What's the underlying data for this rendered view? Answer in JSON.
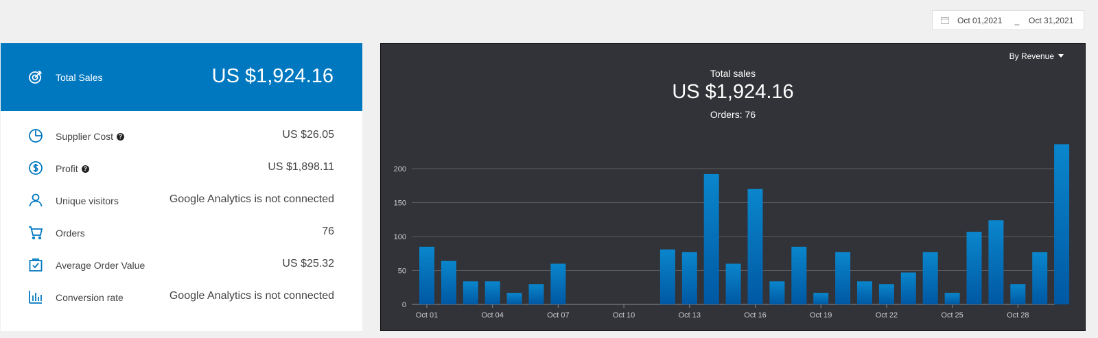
{
  "date_range": {
    "start": "Oct 01,2021",
    "separator": "_",
    "end": "Oct 31,2021",
    "icon": "calendar-icon"
  },
  "summary": {
    "total_label": "Total Sales",
    "total_value": "US $1,924.16",
    "total_icon": "target-icon",
    "accent_color": "#0078c0",
    "metrics": [
      {
        "label": "Supplier Cost",
        "value": "US $26.05",
        "icon": "pie-chart-icon",
        "help": true
      },
      {
        "label": "Profit",
        "value": "US $1,898.11",
        "icon": "dollar-circle-icon",
        "help": true
      },
      {
        "label": "Unique visitors",
        "value": "Google Analytics is not connected",
        "icon": "user-icon",
        "help": false
      },
      {
        "label": "Orders",
        "value": "76",
        "icon": "cart-icon",
        "help": false
      },
      {
        "label": "Average Order Value",
        "value": "US $25.32",
        "icon": "bag-check-icon",
        "help": false
      },
      {
        "label": "Conversion rate",
        "value": "Google Analytics is not connected",
        "icon": "bar-chart-icon",
        "help": false
      }
    ]
  },
  "chart_panel": {
    "dropdown_label": "By Revenue",
    "title": "Total sales",
    "total": "US $1,924.16",
    "orders": "Orders: 76",
    "background": "#313338"
  },
  "chart_data": {
    "type": "bar",
    "x": [
      "Oct 01",
      "Oct 02",
      "Oct 03",
      "Oct 04",
      "Oct 05",
      "Oct 06",
      "Oct 07",
      "Oct 08",
      "Oct 09",
      "Oct 10",
      "Oct 11",
      "Oct 12",
      "Oct 13",
      "Oct 14",
      "Oct 15",
      "Oct 16",
      "Oct 17",
      "Oct 18",
      "Oct 19",
      "Oct 20",
      "Oct 21",
      "Oct 22",
      "Oct 23",
      "Oct 24",
      "Oct 25",
      "Oct 26",
      "Oct 27",
      "Oct 28",
      "Oct 29",
      "Oct 30"
    ],
    "tick_labels": [
      "Oct 01",
      "Oct 04",
      "Oct 07",
      "Oct 10",
      "Oct 13",
      "Oct 16",
      "Oct 19",
      "Oct 22",
      "Oct 25",
      "Oct 28"
    ],
    "values": [
      85,
      64,
      34,
      34,
      17,
      30,
      60,
      0,
      0,
      0,
      0,
      81,
      77,
      192,
      60,
      170,
      34,
      85,
      17,
      77,
      34,
      30,
      47,
      77,
      17,
      107,
      124,
      30,
      77,
      236
    ],
    "ylim": [
      0,
      240
    ],
    "yticks": [
      0,
      50,
      100,
      150,
      200
    ],
    "grid": true,
    "bar_color_top": "#0a86cc",
    "bar_color_bottom": "#0058a3"
  }
}
